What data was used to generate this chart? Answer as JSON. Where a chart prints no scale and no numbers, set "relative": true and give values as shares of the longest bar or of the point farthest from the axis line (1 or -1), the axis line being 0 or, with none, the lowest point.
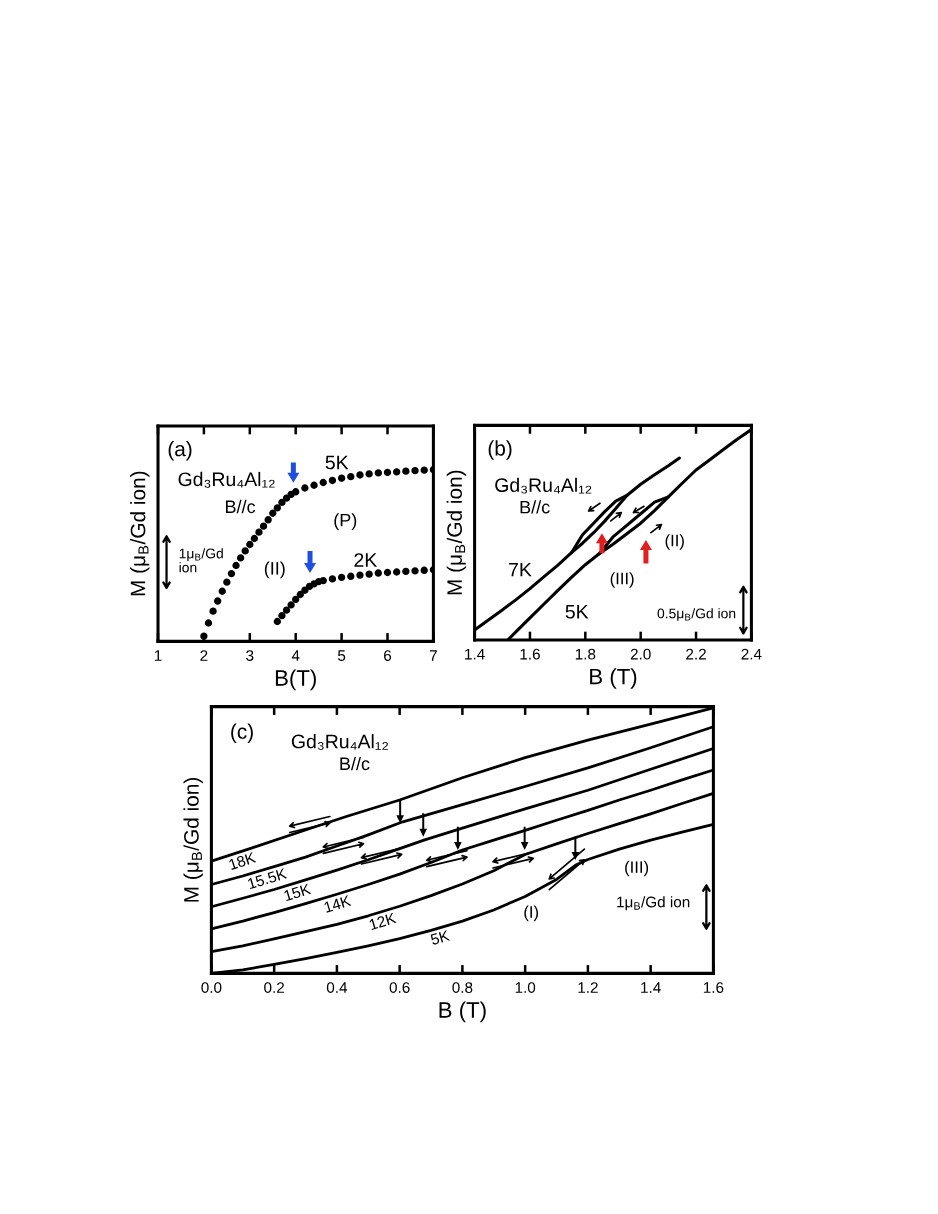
{
  "chart_data": [
    {
      "type": "scatter",
      "relative": true,
      "marker": "circle",
      "xlabel": "B(T)",
      "ylabel": "M (μ$_{B}$/Gd ion)",
      "xlim": [
        1,
        7
      ],
      "xticks": [
        1,
        2,
        3,
        4,
        5,
        6,
        7
      ],
      "annotations": [
        "(a)",
        "Gd₃Ru₄Al₁₂",
        "B//c",
        "1μ$_{B}$/Gd\nion",
        "(II)",
        "(P)"
      ],
      "series": [
        {
          "name": "5K",
          "color": "#000000",
          "x": [
            2.0,
            2.1,
            2.2,
            2.3,
            2.4,
            2.5,
            2.6,
            2.7,
            2.8,
            2.9,
            3.0,
            3.1,
            3.2,
            3.3,
            3.4,
            3.5,
            3.6,
            3.7,
            3.8,
            3.9,
            4.0,
            4.2,
            4.4,
            4.6,
            4.8,
            5.0,
            5.2,
            5.4,
            5.6,
            5.8,
            6.0,
            6.2,
            6.4,
            6.6,
            6.8,
            7.0
          ],
          "values": [
            0.031,
            0.107,
            0.176,
            0.235,
            0.292,
            0.345,
            0.395,
            0.442,
            0.486,
            0.527,
            0.564,
            0.599,
            0.636,
            0.671,
            0.708,
            0.746,
            0.777,
            0.809,
            0.834,
            0.856,
            0.871,
            0.893,
            0.909,
            0.925,
            0.937,
            0.95,
            0.959,
            0.969,
            0.975,
            0.981,
            0.984,
            0.987,
            0.991,
            0.994,
            0.997,
            1.0
          ]
        },
        {
          "name": "2K",
          "color": "#000000",
          "x": [
            3.6,
            3.7,
            3.8,
            3.9,
            4.0,
            4.1,
            4.2,
            4.3,
            4.4,
            4.5,
            4.6,
            4.8,
            5.0,
            5.2,
            5.4,
            5.6,
            5.8,
            6.0,
            6.2,
            6.4,
            6.6,
            6.8,
            7.0
          ],
          "values": [
            0.116,
            0.15,
            0.182,
            0.213,
            0.245,
            0.273,
            0.298,
            0.32,
            0.335,
            0.348,
            0.354,
            0.364,
            0.373,
            0.379,
            0.386,
            0.392,
            0.398,
            0.401,
            0.404,
            0.408,
            0.411,
            0.414,
            0.417
          ]
        }
      ]
    },
    {
      "type": "line",
      "relative": true,
      "xlabel": "B (T)",
      "ylabel": "M (μ$_{B}$/Gd ion)",
      "xlim": [
        1.4,
        2.4
      ],
      "xticks": [
        1.4,
        1.6,
        1.8,
        {
          "value": 2,
          "label": "2.0"
        },
        2.2,
        2.4
      ],
      "annotations": [
        "(b)",
        "Gd₃Ru₄Al₁₂",
        "B//c",
        "(II)",
        "(III)",
        "0.5μ$_{B}$/Gd ion"
      ],
      "series": [
        {
          "name": "7K",
          "color": "#000000",
          "x": [
            1.4,
            1.45,
            1.5,
            1.55,
            1.6,
            1.65,
            1.7,
            1.75,
            1.79,
            1.83,
            1.87,
            1.91,
            1.95,
            2.0,
            2.05,
            2.1,
            2.14
          ],
          "values": [
            0.048,
            0.095,
            0.143,
            0.192,
            0.244,
            0.3,
            0.355,
            0.415,
            0.46,
            0.51,
            0.565,
            0.625,
            0.687,
            0.74,
            0.785,
            0.828,
            0.865
          ]
        },
        {
          "color": "#000000",
          "x": [
            1.95,
            1.91,
            1.87,
            1.83,
            1.79,
            1.75
          ],
          "values": [
            0.687,
            0.66,
            0.61,
            0.555,
            0.5,
            0.415
          ]
        },
        {
          "name": "5K",
          "color": "#000000",
          "x": [
            1.52,
            1.55,
            1.6,
            1.65,
            1.7,
            1.75,
            1.8,
            1.85,
            1.9,
            1.95,
            2.0,
            2.05,
            2.1,
            2.15,
            2.2,
            2.25,
            2.3,
            2.35,
            2.4
          ],
          "values": [
            0,
            0.04,
            0.105,
            0.17,
            0.235,
            0.298,
            0.358,
            0.41,
            0.455,
            0.505,
            0.555,
            0.615,
            0.68,
            0.745,
            0.808,
            0.857,
            0.907,
            0.955,
            1.0
          ]
        },
        {
          "color": "#000000",
          "x": [
            2.1,
            2.05,
            2.0,
            1.95,
            1.9,
            1.85
          ],
          "values": [
            0.68,
            0.655,
            0.6,
            0.545,
            0.49,
            0.41
          ]
        }
      ]
    },
    {
      "type": "line",
      "relative": true,
      "xlabel": "B (T)",
      "ylabel": "M (μ$_{B}$/Gd ion)",
      "xlim": [
        0,
        1.6
      ],
      "xticks": [
        {
          "value": 0,
          "label": "0.0"
        },
        0.2,
        0.4,
        0.6,
        0.8,
        {
          "value": 1,
          "label": "1.0"
        },
        1.2,
        1.4,
        1.6
      ],
      "annotations": [
        "(c)",
        "Gd₃Ru₄Al₁₂",
        "B//c",
        "(I)",
        "(III)",
        "1μ$_{B}$/Gd ion"
      ],
      "series": [
        {
          "name": "18K",
          "color": "#000000",
          "x": [
            0,
            0.13,
            0.3,
            0.43,
            0.6,
            0.8,
            1.0,
            1.2,
            1.4,
            1.6
          ],
          "values": [
            0.423,
            0.473,
            0.54,
            0.591,
            0.653,
            0.737,
            0.813,
            0.879,
            0.939,
            1.0
          ]
        },
        {
          "name": "15.5K",
          "color": "#000000",
          "x": [
            0,
            0.1,
            0.2,
            0.3,
            0.4,
            0.5,
            0.61,
            0.8,
            1.0,
            1.2,
            1.4,
            1.6
          ],
          "values": [
            0.335,
            0.367,
            0.402,
            0.438,
            0.48,
            0.522,
            0.571,
            0.636,
            0.704,
            0.774,
            0.85,
            0.929
          ]
        },
        {
          "name": "15K",
          "color": "#000000",
          "x": [
            0,
            0.1,
            0.2,
            0.3,
            0.4,
            0.5,
            0.6,
            0.68,
            0.8,
            1.0,
            1.2,
            1.4,
            1.6
          ],
          "values": [
            0.251,
            0.283,
            0.316,
            0.352,
            0.389,
            0.428,
            0.47,
            0.503,
            0.547,
            0.62,
            0.69,
            0.769,
            0.847
          ]
        },
        {
          "name": "14K",
          "color": "#000000",
          "x": [
            0,
            0.1,
            0.2,
            0.3,
            0.4,
            0.5,
            0.6,
            0.7,
            0.8,
            0.9,
            1.0,
            1.1,
            1.2,
            1.3,
            1.4,
            1.5,
            1.6
          ],
          "values": [
            0.168,
            0.197,
            0.229,
            0.263,
            0.298,
            0.335,
            0.374,
            0.418,
            0.465,
            0.502,
            0.539,
            0.577,
            0.614,
            0.653,
            0.69,
            0.729,
            0.766
          ]
        },
        {
          "name": "12K",
          "color": "#000000",
          "x": [
            0,
            0.1,
            0.2,
            0.3,
            0.4,
            0.5,
            0.6,
            0.7,
            0.8,
            0.9,
            1.0,
            1.1,
            1.2,
            1.3,
            1.4,
            1.5,
            1.6
          ],
          "values": [
            0.082,
            0.104,
            0.13,
            0.157,
            0.185,
            0.217,
            0.253,
            0.293,
            0.337,
            0.387,
            0.448,
            0.488,
            0.527,
            0.564,
            0.601,
            0.64,
            0.678
          ]
        },
        {
          "name": "5K",
          "color": "#000000",
          "x": [
            0,
            0.1,
            0.2,
            0.3,
            0.4,
            0.5,
            0.6,
            0.7,
            0.8,
            0.9,
            1.0,
            1.1,
            1.16,
            1.2,
            1.3,
            1.4,
            1.5,
            1.6
          ],
          "values": [
            0,
            0.013,
            0.034,
            0.056,
            0.079,
            0.104,
            0.131,
            0.162,
            0.197,
            0.239,
            0.29,
            0.354,
            0.407,
            0.429,
            0.468,
            0.502,
            0.532,
            0.561
          ]
        }
      ]
    }
  ]
}
